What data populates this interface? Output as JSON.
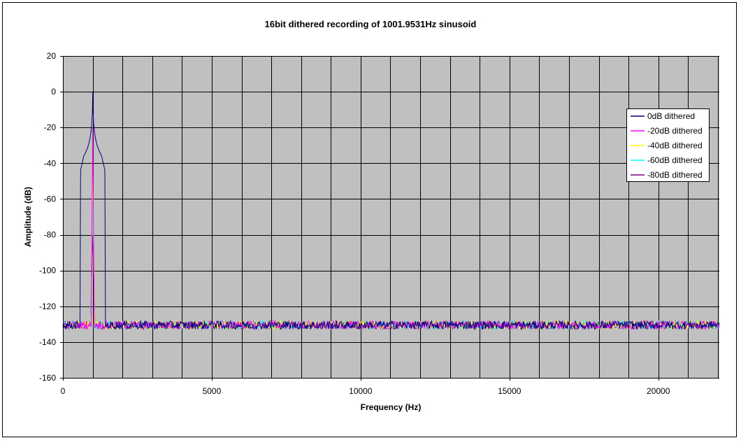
{
  "chart_data": {
    "type": "line",
    "title": "16bit dithered recording of 1001.9531Hz sinusoid",
    "xlabel": "Frequency (Hz)",
    "ylabel": "Amplitude (dB)",
    "xlim": [
      0,
      22050
    ],
    "ylim": [
      -160,
      20
    ],
    "x_ticks": [
      0,
      5000,
      10000,
      15000,
      20000
    ],
    "y_ticks": [
      20,
      0,
      -20,
      -40,
      -60,
      -80,
      -100,
      -120,
      -140,
      -160
    ],
    "grid": true,
    "legend_position": "right",
    "background_color": "#c0c0c0",
    "tone_frequency": 1001.9531,
    "noise_floor_db": -130.5,
    "series": [
      {
        "name": "0dB dithered",
        "color": "#000080",
        "peak_db": 0
      },
      {
        "name": "-20dB dithered",
        "color": "#ff00ff",
        "peak_db": -20
      },
      {
        "name": "-40dB dithered",
        "color": "#ffff00",
        "peak_db": -40
      },
      {
        "name": "-60dB dithered",
        "color": "#00ffff",
        "peak_db": -60
      },
      {
        "name": "-80dB dithered",
        "color": "#800080",
        "peak_db": -80
      }
    ]
  }
}
